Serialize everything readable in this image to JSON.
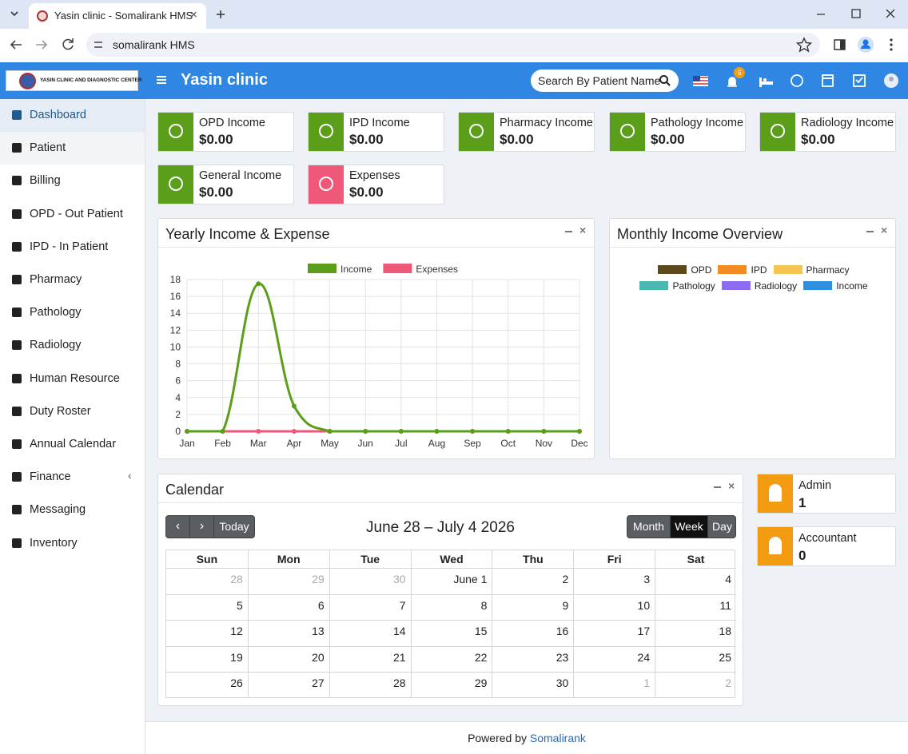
{
  "browser": {
    "tab_title": "Yasin clinic - Somalirank HMS",
    "url": "somalirank HMS"
  },
  "header": {
    "logo_text": "YASIN CLINIC AND DIAGNOSTIC CENTER",
    "title": "Yasin clinic",
    "search_placeholder": "Search By Patient Name",
    "notification_count": "6"
  },
  "sidebar": {
    "items": [
      "Dashboard",
      "Patient",
      "Billing",
      "OPD - Out Patient",
      "IPD - In Patient",
      "Pharmacy",
      "Pathology",
      "Radiology",
      "Human Resource",
      "Duty Roster",
      "Annual Calendar",
      "Finance",
      "Messaging",
      "Inventory"
    ]
  },
  "income_cards": [
    {
      "label": "OPD Income",
      "value": "$0.00",
      "color": "#5a9e1a"
    },
    {
      "label": "IPD Income",
      "value": "$0.00",
      "color": "#5a9e1a"
    },
    {
      "label": "Pharmacy Income",
      "value": "$0.00",
      "color": "#5a9e1a"
    },
    {
      "label": "Pathology Income",
      "value": "$0.00",
      "color": "#5a9e1a"
    },
    {
      "label": "Radiology Income",
      "value": "$0.00",
      "color": "#5a9e1a"
    },
    {
      "label": "General Income",
      "value": "$0.00",
      "color": "#5a9e1a"
    },
    {
      "label": "Expenses",
      "value": "$0.00",
      "color": "#f0587a"
    }
  ],
  "chart_data": [
    {
      "type": "line",
      "title": "Yearly Income & Expense",
      "categories": [
        "Jan",
        "Feb",
        "Mar",
        "Apr",
        "May",
        "Jun",
        "Jul",
        "Aug",
        "Sep",
        "Oct",
        "Nov",
        "Dec"
      ],
      "series": [
        {
          "name": "Income",
          "color": "#5a9e1a",
          "values": [
            0,
            0,
            17.5,
            3,
            0,
            0,
            0,
            0,
            0,
            0,
            0,
            0
          ]
        },
        {
          "name": "Expenses",
          "color": "#f0587a",
          "values": [
            0,
            0,
            0,
            0,
            0,
            0,
            0,
            0,
            0,
            0,
            0,
            0
          ]
        }
      ],
      "ylim": [
        0,
        18
      ],
      "yticks": [
        0,
        2,
        4,
        6,
        8,
        10,
        12,
        14,
        16,
        18
      ],
      "grid": true
    },
    {
      "type": "pie",
      "title": "Monthly Income Overview",
      "categories": [
        "OPD",
        "IPD",
        "Pharmacy",
        "Pathology",
        "Radiology",
        "Income"
      ],
      "colors": [
        "#5c4a1e",
        "#f48c24",
        "#f6c453",
        "#4bb8b0",
        "#8c6cf0",
        "#2f8fe0"
      ]
    }
  ],
  "calendar": {
    "title": "Calendar",
    "today_button": "Today",
    "range_title": "June 28 – July 4 2026",
    "view_buttons": [
      "Month",
      "Week",
      "Day"
    ],
    "weekdays": [
      "Sun",
      "Mon",
      "Tue",
      "Wed",
      "Thu",
      "Fri",
      "Sat"
    ],
    "weeks": [
      [
        "28",
        "29",
        "30",
        "June 1",
        "2",
        "3",
        "4"
      ],
      [
        "5",
        "6",
        "7",
        "8",
        "9",
        "10",
        "11"
      ],
      [
        "12",
        "13",
        "14",
        "15",
        "16",
        "17",
        "18"
      ],
      [
        "19",
        "20",
        "21",
        "22",
        "23",
        "24",
        "25"
      ],
      [
        "26",
        "27",
        "28",
        "29",
        "30",
        "1",
        "2"
      ]
    ]
  },
  "staff_cards": [
    {
      "label": "Admin",
      "value": "1"
    },
    {
      "label": "Accountant",
      "value": "0"
    }
  ],
  "footer": {
    "prefix": "Powered by",
    "link": "Somalirank"
  }
}
